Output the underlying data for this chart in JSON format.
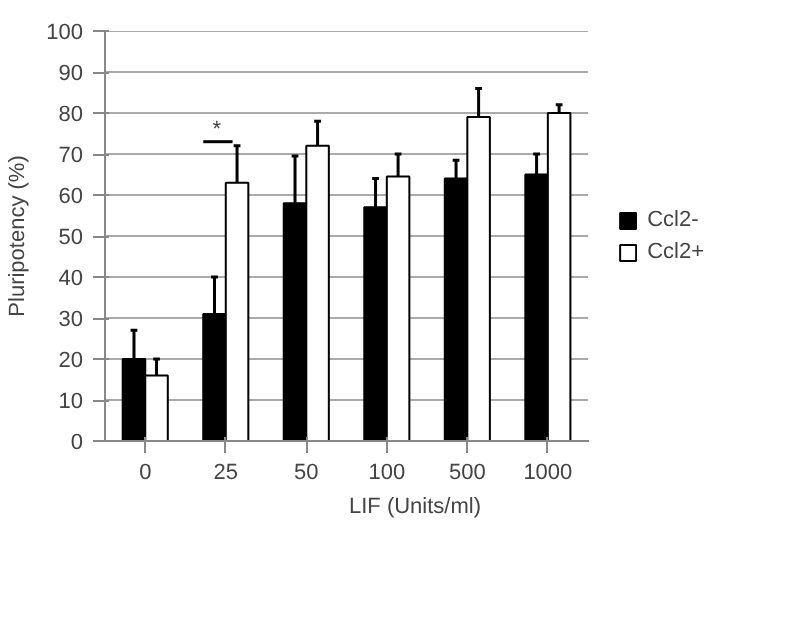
{
  "chart_data": {
    "type": "bar",
    "xlabel": "LIF (Units/ml)",
    "ylabel": "Pluripotency (%)",
    "categories": [
      "0",
      "25",
      "50",
      "100",
      "500",
      "1000"
    ],
    "series": [
      {
        "name": "Ccl2-",
        "color": "#000000",
        "values": [
          20,
          31,
          58,
          57,
          64,
          65
        ],
        "errors": [
          [
            20,
            27
          ],
          [
            31,
            40
          ],
          [
            58,
            69.5
          ],
          [
            57,
            64
          ],
          [
            64,
            68.5
          ],
          [
            65,
            70
          ]
        ]
      },
      {
        "name": "Ccl2+",
        "color": "#ffffff",
        "values": [
          16,
          63,
          72,
          64.5,
          79,
          80
        ],
        "errors": [
          [
            16,
            20
          ],
          [
            63,
            72
          ],
          [
            72,
            78
          ],
          [
            64.5,
            70
          ],
          [
            79,
            86
          ],
          [
            80,
            82
          ]
        ]
      }
    ],
    "ylim": [
      0,
      100
    ],
    "yticks": [
      0,
      10,
      20,
      30,
      40,
      50,
      60,
      70,
      80,
      90,
      100
    ],
    "grid": "y",
    "legend": "right",
    "annotations": [
      "*"
    ]
  }
}
